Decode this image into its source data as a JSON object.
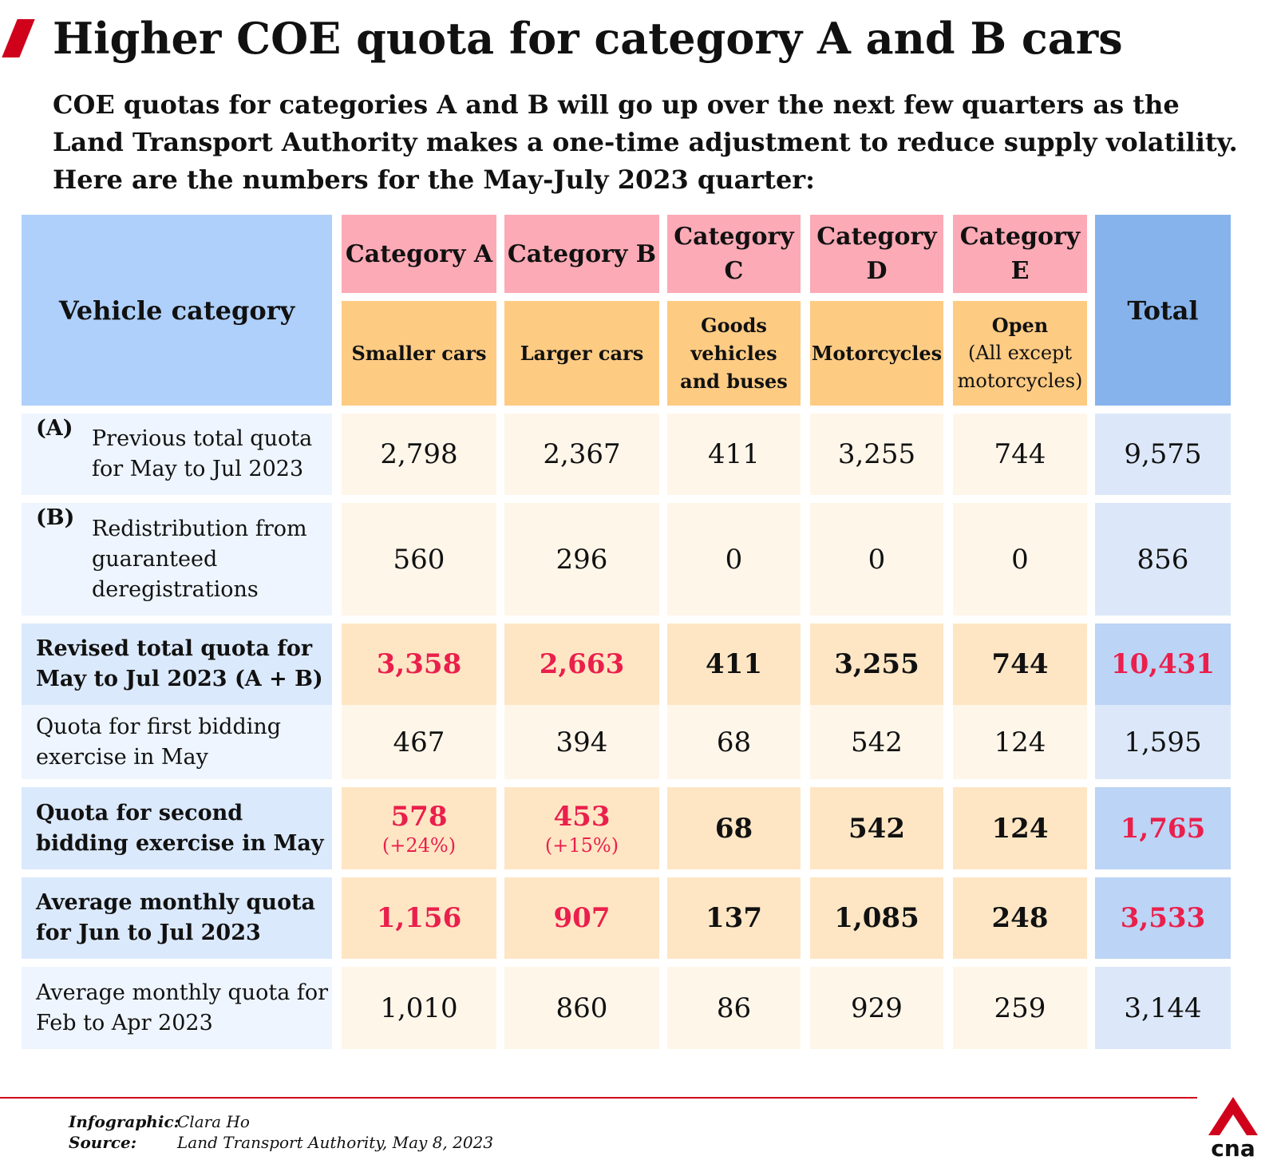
{
  "title": "Higher COE quota for category A and B cars",
  "intro": [
    "COE quotas for categories A and B will go up over the next few quarters as the",
    "Land Transport Authority makes a one-time adjustment to reduce supply volatility.",
    "Here are the numbers for the May-July 2023 quarter:"
  ],
  "colors": {
    "accent": "#d0021b",
    "highlight_text": "#ea1f4c",
    "header_blue": "#aed0fb",
    "header_total": "#86b3ec",
    "header_pink": "#fcaab6",
    "header_orange": "#fecb83"
  },
  "chart_data": {
    "type": "table",
    "row_header_title": "Vehicle category",
    "total_header": "Total",
    "columns": [
      {
        "name": "Category A",
        "desc": "Smaller cars",
        "desc_note": ""
      },
      {
        "name": "Category B",
        "desc": "Larger cars",
        "desc_note": ""
      },
      {
        "name": "Category C",
        "desc": "Goods vehicles and buses",
        "desc_note": ""
      },
      {
        "name": "Category D",
        "desc": "Motorcycles",
        "desc_note": ""
      },
      {
        "name": "Category E",
        "desc": "Open",
        "desc_note": "(All except motorcycles)"
      }
    ],
    "rows": [
      {
        "marker": "(A)",
        "label": "Previous total quota for May to Jul 2023",
        "bold": false,
        "values": [
          "2,798",
          "2,367",
          "411",
          "3,255",
          "744"
        ],
        "total": "9,575",
        "highlight": [
          false,
          false,
          false,
          false,
          false
        ],
        "total_highlight": false,
        "pct": [
          "",
          "",
          "",
          "",
          ""
        ]
      },
      {
        "marker": "(B)",
        "label": "Redistribution from guaranteed deregistrations",
        "bold": false,
        "values": [
          "560",
          "296",
          "0",
          "0",
          "0"
        ],
        "total": "856",
        "highlight": [
          false,
          false,
          false,
          false,
          false
        ],
        "total_highlight": false,
        "pct": [
          "",
          "",
          "",
          "",
          ""
        ]
      },
      {
        "marker": "",
        "label": "Revised total quota for May to Jul 2023 (A + B)",
        "bold": true,
        "values": [
          "3,358",
          "2,663",
          "411",
          "3,255",
          "744"
        ],
        "total": "10,431",
        "highlight": [
          true,
          true,
          false,
          false,
          false
        ],
        "total_highlight": true,
        "pct": [
          "",
          "",
          "",
          "",
          ""
        ]
      },
      {
        "marker": "",
        "label": "Quota for first bidding exercise in May",
        "bold": false,
        "values": [
          "467",
          "394",
          "68",
          "542",
          "124"
        ],
        "total": "1,595",
        "highlight": [
          false,
          false,
          false,
          false,
          false
        ],
        "total_highlight": false,
        "pct": [
          "",
          "",
          "",
          "",
          ""
        ]
      },
      {
        "marker": "",
        "label": "Quota for second bidding exercise in May",
        "bold": true,
        "values": [
          "578",
          "453",
          "68",
          "542",
          "124"
        ],
        "total": "1,765",
        "highlight": [
          true,
          true,
          false,
          false,
          false
        ],
        "total_highlight": true,
        "pct": [
          "(+24%)",
          "(+15%)",
          "",
          "",
          ""
        ]
      },
      {
        "marker": "",
        "label": "Average monthly quota for Jun to Jul 2023",
        "bold": true,
        "values": [
          "1,156",
          "907",
          "137",
          "1,085",
          "248"
        ],
        "total": "3,533",
        "highlight": [
          true,
          true,
          false,
          false,
          false
        ],
        "total_highlight": true,
        "pct": [
          "",
          "",
          "",
          "",
          ""
        ]
      },
      {
        "marker": "",
        "label": "Average monthly quota for Feb to Apr 2023",
        "bold": false,
        "values": [
          "1,010",
          "860",
          "86",
          "929",
          "259"
        ],
        "total": "3,144",
        "highlight": [
          false,
          false,
          false,
          false,
          false
        ],
        "total_highlight": false,
        "pct": [
          "",
          "",
          "",
          "",
          ""
        ]
      }
    ]
  },
  "footer": {
    "infographic_label": "Infographic:",
    "infographic_value": "Clara Ho",
    "source_label": "Source:",
    "source_value": "Land Transport Authority, May 8, 2023",
    "logo_text": "cna"
  }
}
